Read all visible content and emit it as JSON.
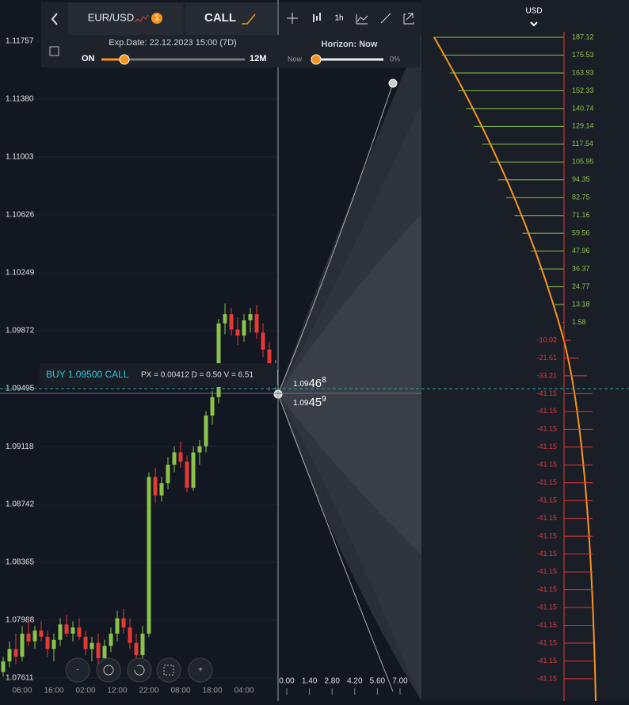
{
  "toolbar": {
    "symbol": "EUR/USD",
    "badge": "1",
    "option_type": "CALL",
    "interval": "1h",
    "currency": "USD"
  },
  "expiry": {
    "label": "Exp.Date: 22.12.2023 15:00 (7D)",
    "start": "ON",
    "end": "12M"
  },
  "horizon": {
    "label": "Horizon: Now",
    "start": "Now",
    "value": "0%"
  },
  "price_axis": [
    "1.11757",
    "1.11380",
    "1.11003",
    "1.10626",
    "1.10249",
    "1.09872",
    "1.09495",
    "1.09118",
    "1.08742",
    "1.08365",
    "1.07988",
    "1.07611"
  ],
  "time_axis": [
    "06:00",
    "16:00",
    "02:00",
    "12:00",
    "22:00",
    "08:00",
    "18:00",
    "04:00"
  ],
  "position": {
    "label": "BUY 1.09500 CALL",
    "stats": "PX = 0.00412 D = 0.50 V = 6.51",
    "price": 1.09495
  },
  "quotes": [
    {
      "prefix": "1.09",
      "main": "46",
      "sup": "8"
    },
    {
      "prefix": "1.09",
      "main": "45",
      "sup": "9"
    }
  ],
  "horizon_axis": [
    "0.00",
    "1.40",
    "2.80",
    "4.20",
    "5.60",
    "7.00"
  ],
  "payoff": [
    187.12,
    175.53,
    163.93,
    152.33,
    140.74,
    129.14,
    117.54,
    105.95,
    94.35,
    82.75,
    71.16,
    59.56,
    47.96,
    36.37,
    24.77,
    13.18,
    1.58,
    -10.02,
    -21.61,
    -33.21,
    -41.15,
    -41.15,
    -41.15,
    -41.15,
    -41.15,
    -41.15,
    -41.15,
    -41.15,
    -41.15,
    -41.15,
    -41.15,
    -41.15,
    -41.15,
    -41.15,
    -41.15,
    -41.15,
    -41.15
  ],
  "candles": [
    [
      1.0765,
      1.0775,
      1.0762,
      1.0772
    ],
    [
      1.0772,
      1.0785,
      1.0768,
      1.078
    ],
    [
      1.078,
      1.079,
      1.077,
      1.0775
    ],
    [
      1.0775,
      1.0795,
      1.0772,
      1.079
    ],
    [
      1.079,
      1.08,
      1.0782,
      1.0785
    ],
    [
      1.0785,
      1.0795,
      1.078,
      1.0792
    ],
    [
      1.0792,
      1.0798,
      1.0785,
      1.0788
    ],
    [
      1.0788,
      1.0792,
      1.0775,
      1.078
    ],
    [
      1.078,
      1.079,
      1.0772,
      1.0786
    ],
    [
      1.0786,
      1.08,
      1.0782,
      1.0796
    ],
    [
      1.0796,
      1.0802,
      1.0788,
      1.079
    ],
    [
      1.079,
      1.0798,
      1.0785,
      1.0794
    ],
    [
      1.0794,
      1.08,
      1.0786,
      1.0788
    ],
    [
      1.0788,
      1.0792,
      1.0776,
      1.078
    ],
    [
      1.078,
      1.0788,
      1.0772,
      1.0784
    ],
    [
      1.0784,
      1.079,
      1.077,
      1.0774
    ],
    [
      1.0774,
      1.0786,
      1.0768,
      1.0782
    ],
    [
      1.0782,
      1.0794,
      1.0778,
      1.079
    ],
    [
      1.079,
      1.0805,
      1.0785,
      1.08
    ],
    [
      1.08,
      1.0806,
      1.079,
      1.0794
    ],
    [
      1.0794,
      1.08,
      1.078,
      1.0784
    ],
    [
      1.0784,
      1.079,
      1.0772,
      1.0776
    ],
    [
      1.0776,
      1.0795,
      1.0774,
      1.079
    ],
    [
      1.079,
      1.0895,
      1.0788,
      1.0892
    ],
    [
      1.0892,
      1.0898,
      1.0875,
      1.088
    ],
    [
      1.088,
      1.0892,
      1.0876,
      1.0888
    ],
    [
      1.0888,
      1.0905,
      1.0884,
      1.09
    ],
    [
      1.09,
      1.0912,
      1.0895,
      1.0908
    ],
    [
      1.0908,
      1.0915,
      1.0898,
      1.0902
    ],
    [
      1.0902,
      1.0906,
      1.0882,
      1.0885
    ],
    [
      1.0885,
      1.0912,
      1.0883,
      1.0908
    ],
    [
      1.0908,
      1.0916,
      1.09,
      1.0912
    ],
    [
      1.0912,
      1.0935,
      1.0908,
      1.0932
    ],
    [
      1.0932,
      1.0948,
      1.0926,
      1.0944
    ],
    [
      1.0944,
      1.0995,
      1.094,
      1.0992
    ],
    [
      1.0992,
      1.1005,
      1.0985,
      1.0998
    ],
    [
      1.0998,
      1.1002,
      1.0984,
      1.0988
    ],
    [
      1.0988,
      1.0996,
      1.0978,
      1.0984
    ],
    [
      1.0984,
      1.0998,
      1.098,
      1.0994
    ],
    [
      1.0994,
      1.1002,
      1.0986,
      1.0998
    ],
    [
      1.0998,
      1.1004,
      1.0982,
      1.0986
    ],
    [
      1.0986,
      1.0992,
      1.097,
      1.0975
    ],
    [
      1.0975,
      1.098,
      1.0948,
      1.0952
    ],
    [
      1.0952,
      1.0968,
      1.0948,
      1.0962
    ]
  ],
  "controls": [
    "-",
    "+"
  ]
}
